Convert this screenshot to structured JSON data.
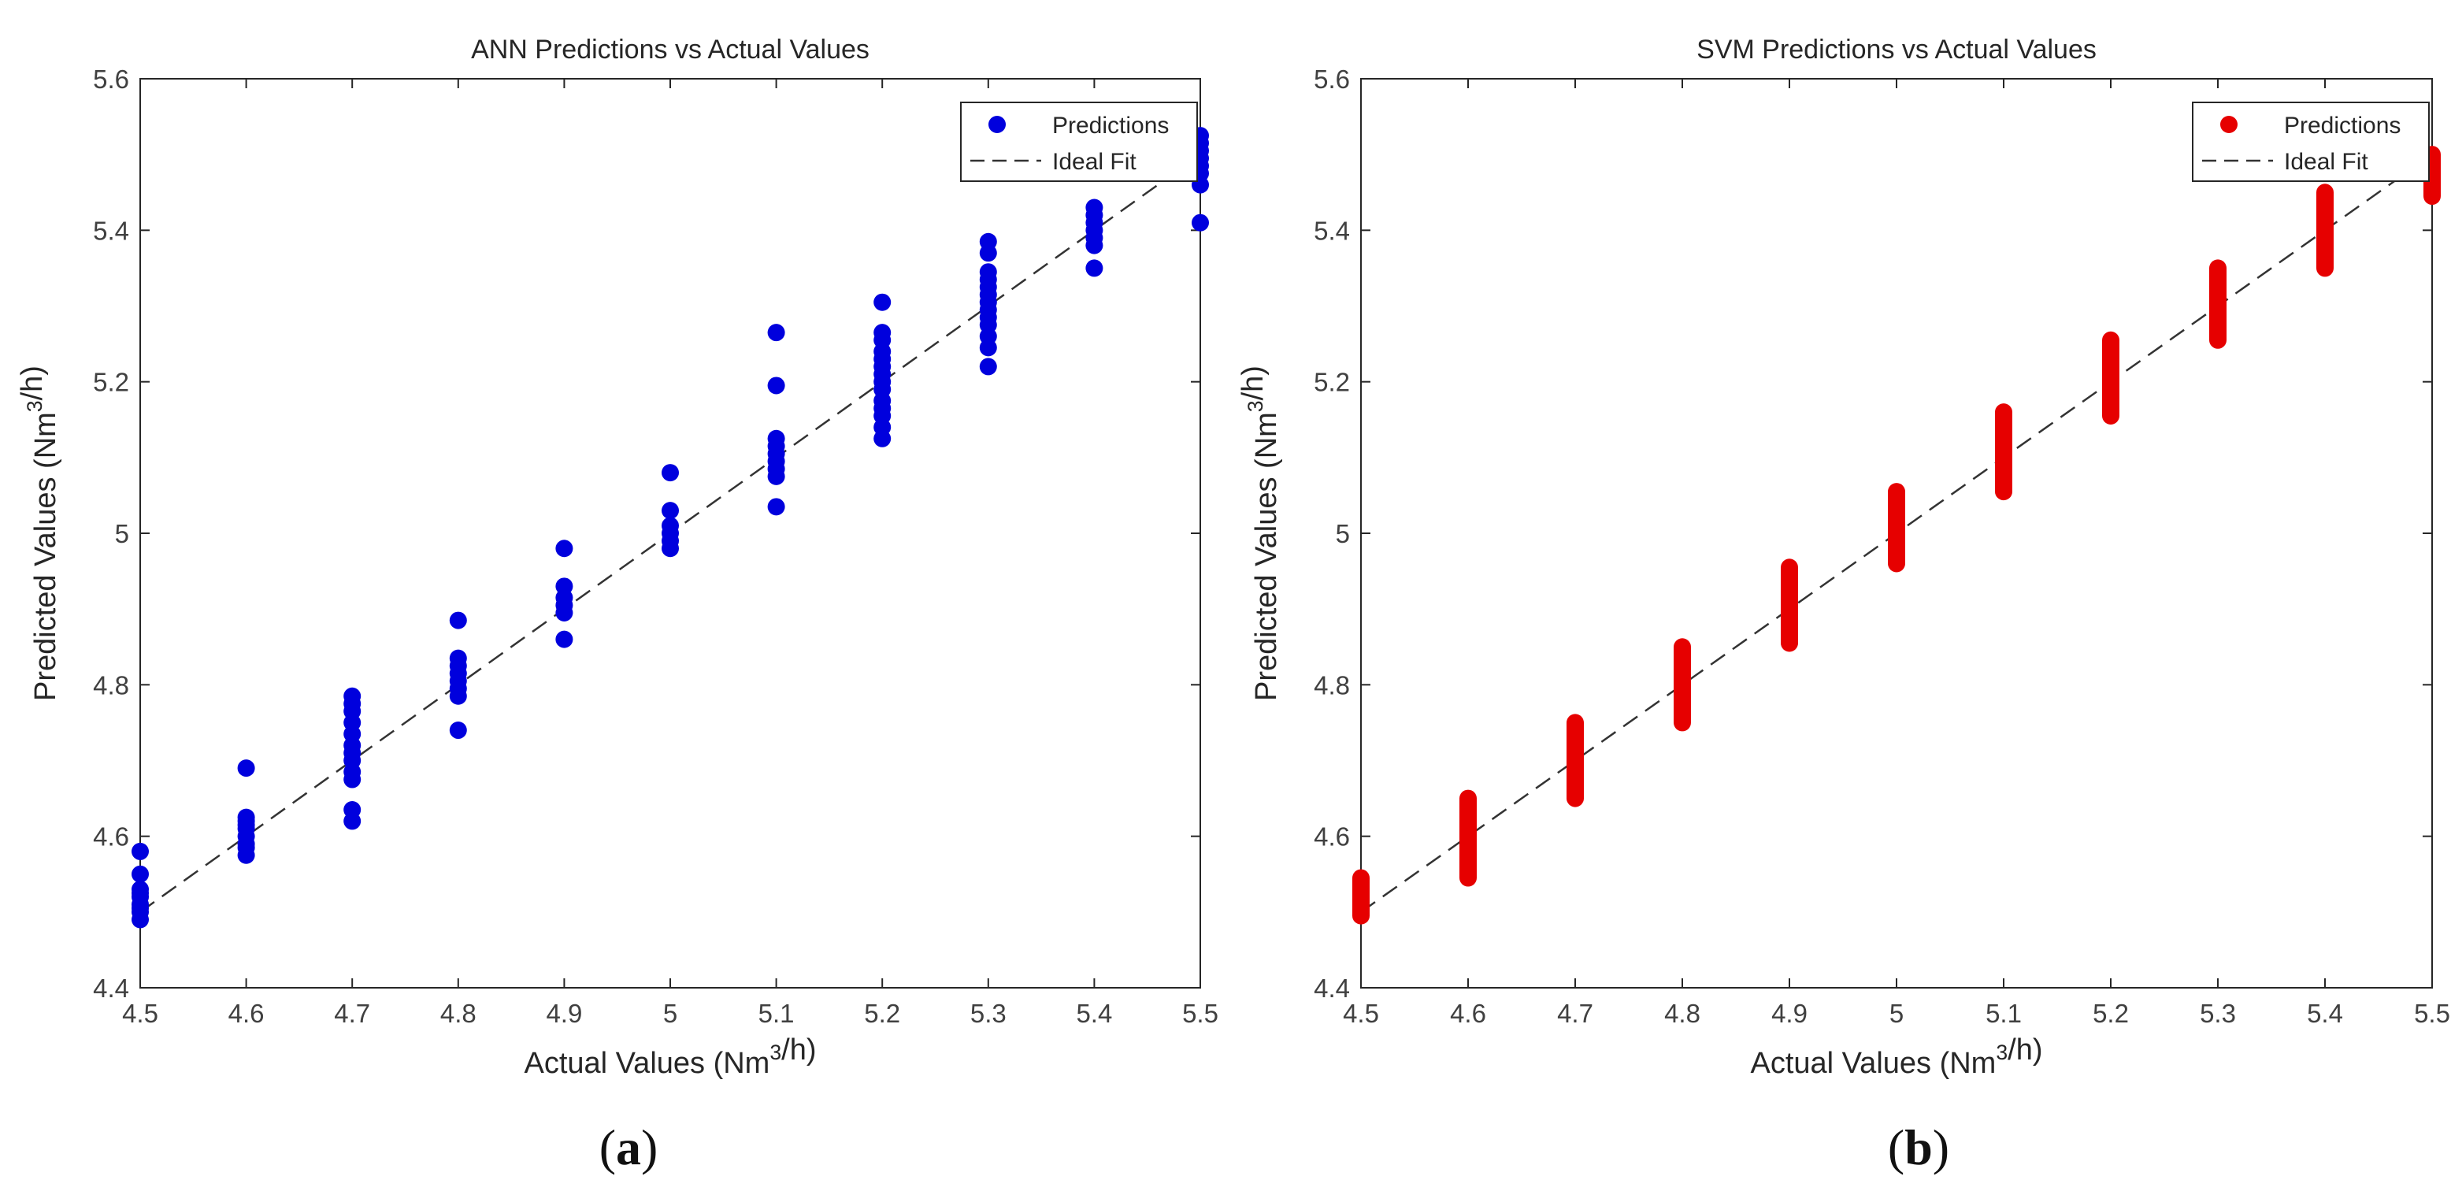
{
  "chart_data": [
    {
      "type": "scatter",
      "panel_label": "(a)",
      "title": "ANN Predictions vs Actual Values",
      "xlabel": "Actual Values (Nm³/h)",
      "ylabel": "Predicted Values (Nm³/h)",
      "xlim": [
        4.5,
        5.5
      ],
      "ylim": [
        4.4,
        5.6
      ],
      "xticks": [
        "4.5",
        "4.6",
        "4.7",
        "4.8",
        "4.9",
        "5",
        "5.1",
        "5.2",
        "5.3",
        "5.4",
        "5.5"
      ],
      "yticks": [
        "4.4",
        "4.6",
        "4.8",
        "5",
        "5.2",
        "5.4",
        "5.6"
      ],
      "grid": false,
      "legend_position": "top-right",
      "series": [
        {
          "name": "Predictions",
          "color": "#0000dd",
          "points": [
            [
              4.5,
              4.49
            ],
            [
              4.5,
              4.5
            ],
            [
              4.5,
              4.505
            ],
            [
              4.5,
              4.51
            ],
            [
              4.5,
              4.52
            ],
            [
              4.5,
              4.525
            ],
            [
              4.5,
              4.53
            ],
            [
              4.5,
              4.55
            ],
            [
              4.5,
              4.58
            ],
            [
              4.6,
              4.575
            ],
            [
              4.6,
              4.585
            ],
            [
              4.6,
              4.59
            ],
            [
              4.6,
              4.6
            ],
            [
              4.6,
              4.61
            ],
            [
              4.6,
              4.615
            ],
            [
              4.6,
              4.62
            ],
            [
              4.6,
              4.625
            ],
            [
              4.6,
              4.69
            ],
            [
              4.7,
              4.62
            ],
            [
              4.7,
              4.635
            ],
            [
              4.7,
              4.675
            ],
            [
              4.7,
              4.685
            ],
            [
              4.7,
              4.7
            ],
            [
              4.7,
              4.71
            ],
            [
              4.7,
              4.72
            ],
            [
              4.7,
              4.735
            ],
            [
              4.7,
              4.75
            ],
            [
              4.7,
              4.765
            ],
            [
              4.7,
              4.775
            ],
            [
              4.7,
              4.785
            ],
            [
              4.8,
              4.74
            ],
            [
              4.8,
              4.785
            ],
            [
              4.8,
              4.795
            ],
            [
              4.8,
              4.805
            ],
            [
              4.8,
              4.815
            ],
            [
              4.8,
              4.825
            ],
            [
              4.8,
              4.835
            ],
            [
              4.8,
              4.885
            ],
            [
              4.9,
              4.86
            ],
            [
              4.9,
              4.895
            ],
            [
              4.9,
              4.905
            ],
            [
              4.9,
              4.915
            ],
            [
              4.9,
              4.93
            ],
            [
              4.9,
              4.98
            ],
            [
              5.0,
              4.98
            ],
            [
              5.0,
              4.99
            ],
            [
              5.0,
              5.0
            ],
            [
              5.0,
              5.01
            ],
            [
              5.0,
              5.03
            ],
            [
              5.0,
              5.08
            ],
            [
              5.1,
              5.035
            ],
            [
              5.1,
              5.075
            ],
            [
              5.1,
              5.085
            ],
            [
              5.1,
              5.095
            ],
            [
              5.1,
              5.105
            ],
            [
              5.1,
              5.115
            ],
            [
              5.1,
              5.125
            ],
            [
              5.1,
              5.195
            ],
            [
              5.1,
              5.265
            ],
            [
              5.2,
              5.125
            ],
            [
              5.2,
              5.14
            ],
            [
              5.2,
              5.155
            ],
            [
              5.2,
              5.165
            ],
            [
              5.2,
              5.175
            ],
            [
              5.2,
              5.19
            ],
            [
              5.2,
              5.2
            ],
            [
              5.2,
              5.21
            ],
            [
              5.2,
              5.22
            ],
            [
              5.2,
              5.23
            ],
            [
              5.2,
              5.24
            ],
            [
              5.2,
              5.255
            ],
            [
              5.2,
              5.265
            ],
            [
              5.2,
              5.305
            ],
            [
              5.3,
              5.22
            ],
            [
              5.3,
              5.245
            ],
            [
              5.3,
              5.26
            ],
            [
              5.3,
              5.275
            ],
            [
              5.3,
              5.285
            ],
            [
              5.3,
              5.295
            ],
            [
              5.3,
              5.305
            ],
            [
              5.3,
              5.315
            ],
            [
              5.3,
              5.325
            ],
            [
              5.3,
              5.335
            ],
            [
              5.3,
              5.345
            ],
            [
              5.3,
              5.37
            ],
            [
              5.3,
              5.385
            ],
            [
              5.4,
              5.35
            ],
            [
              5.4,
              5.38
            ],
            [
              5.4,
              5.39
            ],
            [
              5.4,
              5.4
            ],
            [
              5.4,
              5.41
            ],
            [
              5.4,
              5.42
            ],
            [
              5.4,
              5.43
            ],
            [
              5.5,
              5.41
            ],
            [
              5.5,
              5.46
            ],
            [
              5.5,
              5.475
            ],
            [
              5.5,
              5.485
            ],
            [
              5.5,
              5.495
            ],
            [
              5.5,
              5.505
            ],
            [
              5.5,
              5.515
            ],
            [
              5.5,
              5.525
            ]
          ]
        },
        {
          "name": "Ideal Fit",
          "color": "#333333",
          "line": [
            [
              4.5,
              4.5
            ],
            [
              5.5,
              5.5
            ]
          ]
        }
      ]
    },
    {
      "type": "scatter",
      "panel_label": "(b)",
      "title": "SVM Predictions vs Actual Values",
      "xlabel": "Actual Values (Nm³/h)",
      "ylabel": "Predicted Values (Nm³/h)",
      "xlim": [
        4.5,
        5.5
      ],
      "ylim": [
        4.4,
        5.6
      ],
      "xticks": [
        "4.5",
        "4.6",
        "4.7",
        "4.8",
        "4.9",
        "5",
        "5.1",
        "5.2",
        "5.3",
        "5.4",
        "5.5"
      ],
      "yticks": [
        "4.4",
        "4.6",
        "4.8",
        "5",
        "5.2",
        "5.4",
        "5.6"
      ],
      "grid": false,
      "legend_position": "top-right",
      "series": [
        {
          "name": "Predictions",
          "color": "#e60000",
          "ranges": [
            [
              4.5,
              4.495,
              4.545
            ],
            [
              4.6,
              4.545,
              4.65
            ],
            [
              4.7,
              4.65,
              4.75
            ],
            [
              4.8,
              4.75,
              4.85
            ],
            [
              4.9,
              4.855,
              4.955
            ],
            [
              5.0,
              4.96,
              5.055
            ],
            [
              5.1,
              5.055,
              5.16
            ],
            [
              5.2,
              5.155,
              5.255
            ],
            [
              5.3,
              5.255,
              5.35
            ],
            [
              5.4,
              5.35,
              5.45
            ],
            [
              5.5,
              5.445,
              5.5
            ]
          ]
        },
        {
          "name": "Ideal Fit",
          "color": "#333333",
          "line": [
            [
              4.5,
              4.5
            ],
            [
              5.5,
              5.5
            ]
          ]
        }
      ]
    }
  ]
}
